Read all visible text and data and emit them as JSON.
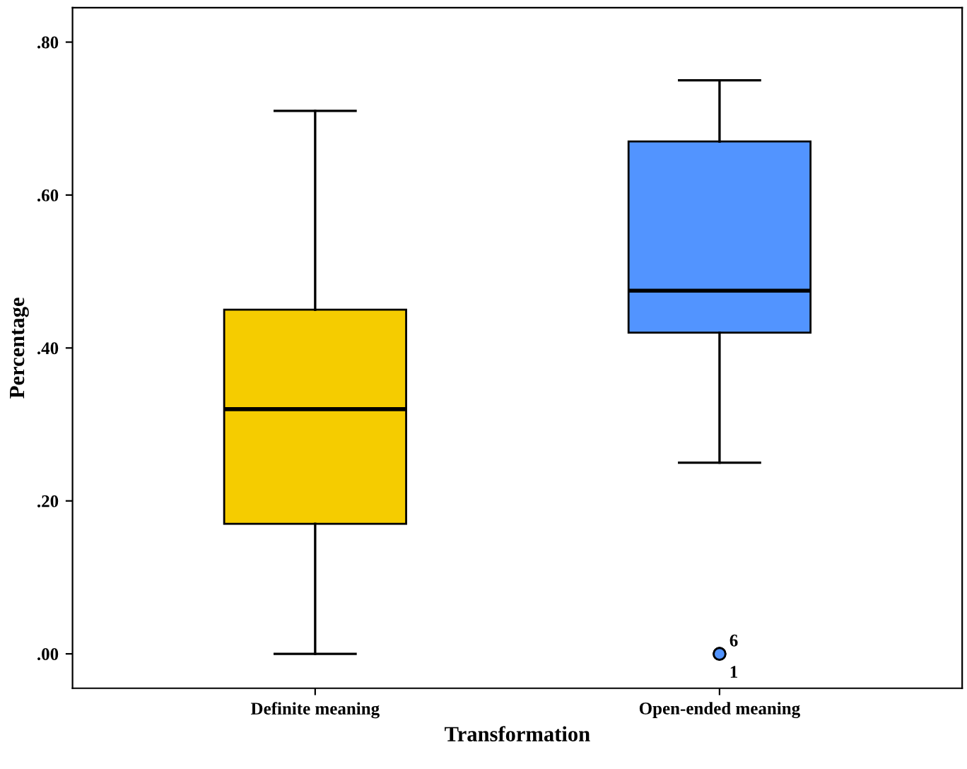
{
  "chart_data": {
    "type": "box",
    "xlabel": "Transformation",
    "ylabel": "Percentage",
    "categories": [
      "Definite meaning",
      "Open-ended meaning"
    ],
    "colors": [
      "#f5cc00",
      "#5294ff"
    ],
    "boxes": [
      {
        "low": 0.0,
        "q1": 0.17,
        "median": 0.32,
        "q3": 0.45,
        "high": 0.71
      },
      {
        "low": 0.25,
        "q1": 0.42,
        "median": 0.475,
        "q3": 0.67,
        "high": 0.75,
        "outliers": [
          0.0,
          0.0
        ]
      }
    ],
    "ylim": [
      -0.045,
      0.845
    ],
    "yticks": [
      {
        "value": 0,
        "label": ".00"
      },
      {
        "value": 0.2,
        "label": ".20"
      },
      {
        "value": 0.4,
        "label": ".40"
      },
      {
        "value": 0.6,
        "label": ".60"
      },
      {
        "value": 0.8,
        "label": ".80"
      }
    ],
    "grid": false,
    "legend": false,
    "annotations": [
      "6",
      "1"
    ]
  }
}
